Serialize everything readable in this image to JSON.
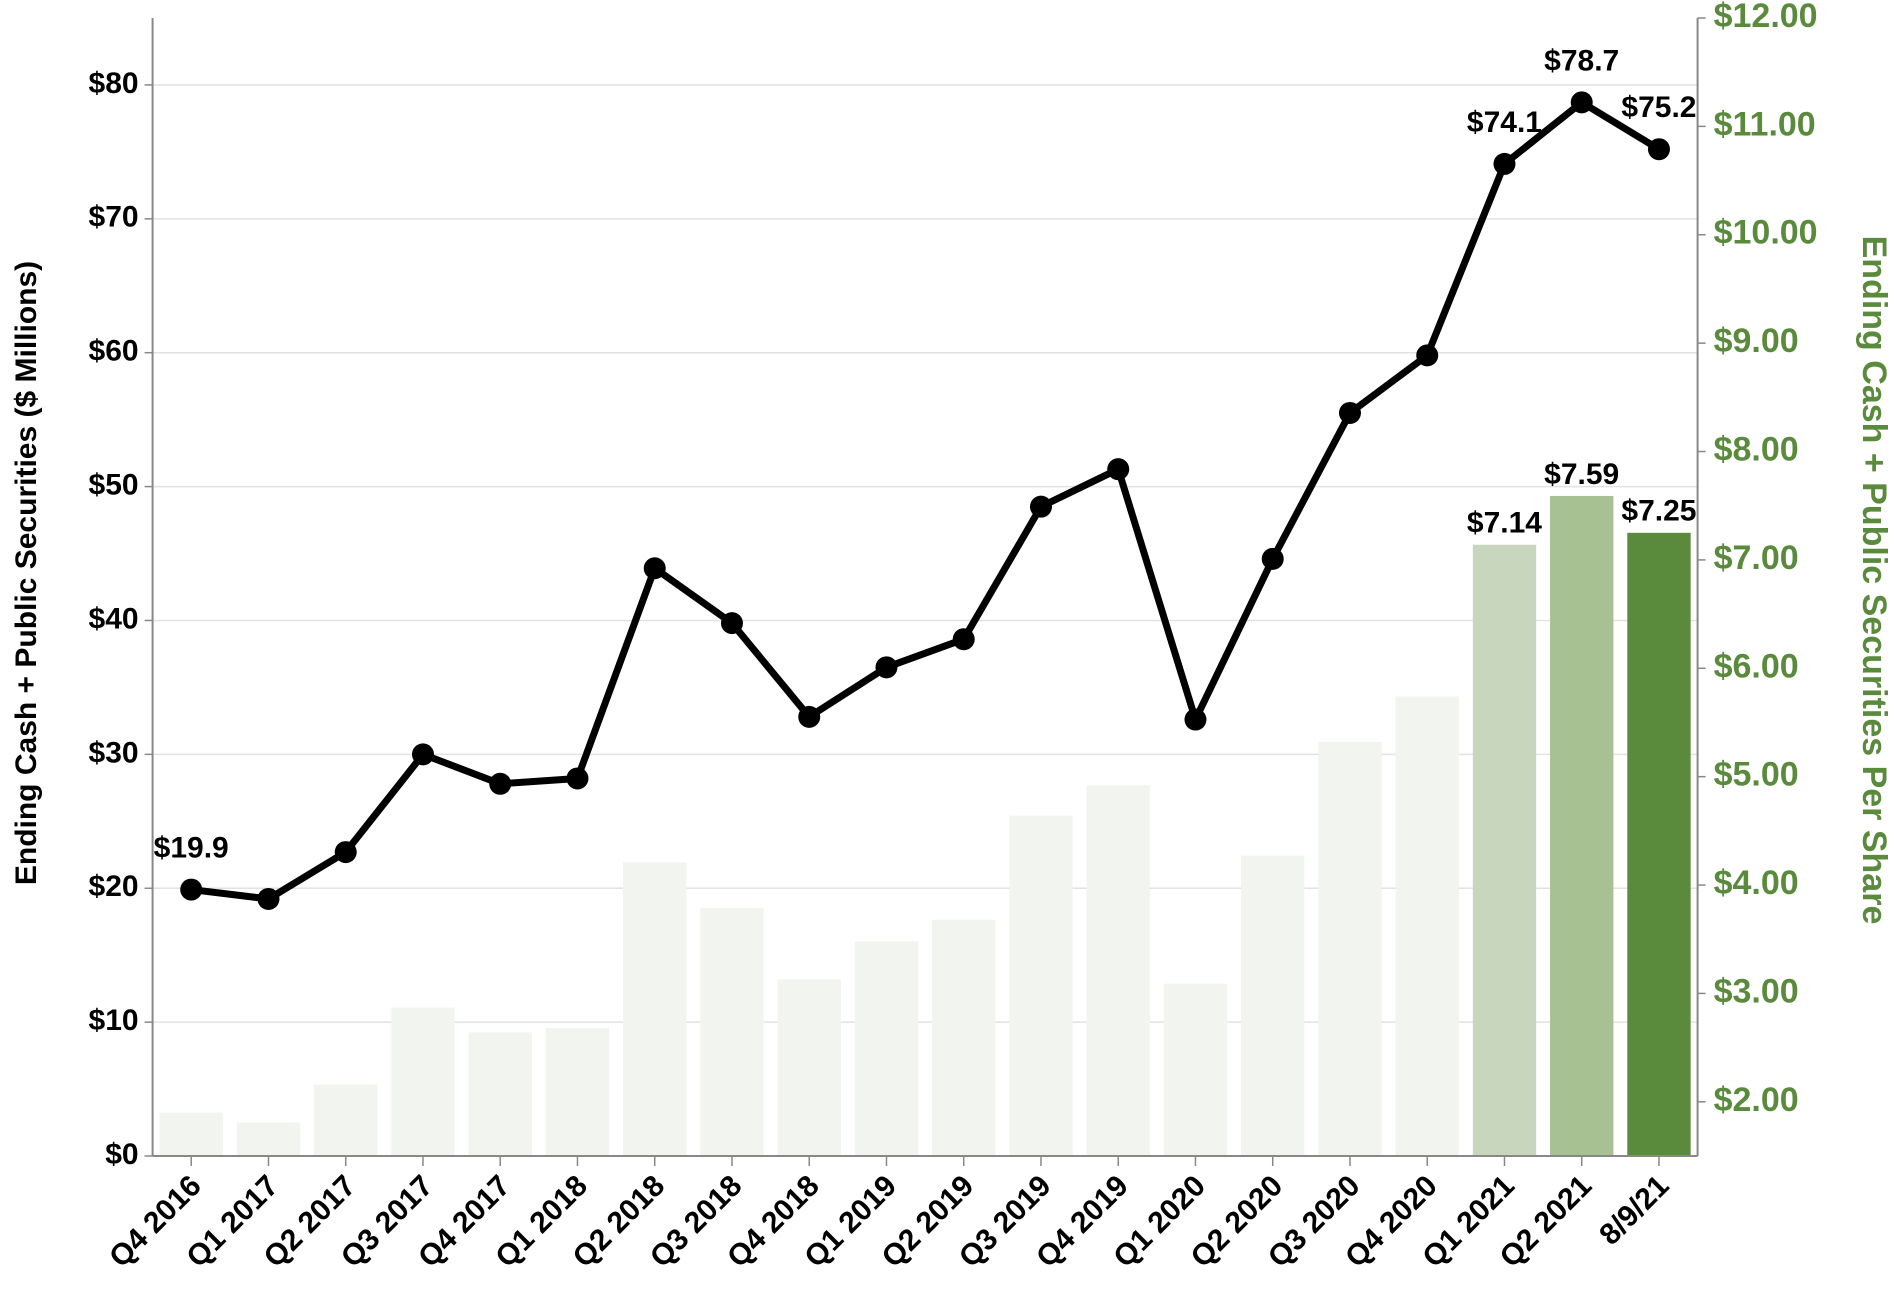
{
  "chart_data": {
    "type": "bar_line",
    "y_label": "Ending Cash + Public Securities ($ Millions)",
    "y2_label": "Ending Cash + Public Securities Per Share",
    "categories": [
      "Q4 2016",
      "Q1 2017",
      "Q2 2017",
      "Q3 2017",
      "Q4 2017",
      "Q1 2018",
      "Q2 2018",
      "Q3 2018",
      "Q4 2018",
      "Q1 2019",
      "Q2 2019",
      "Q3 2019",
      "Q4 2019",
      "Q1 2020",
      "Q2 2020",
      "Q3 2020",
      "Q4 2020",
      "Q1 2021",
      "Q2 2021",
      "8/9/21"
    ],
    "series": [
      {
        "type": "bar",
        "axis": "y2",
        "colors": [
          "#f2f4ef",
          "#f2f4ef",
          "#f2f4ef",
          "#f2f4ef",
          "#f2f4ef",
          "#f2f4ef",
          "#f2f4ef",
          "#f2f4ef",
          "#f2f4ef",
          "#f2f4ef",
          "#f2f4ef",
          "#f2f4ef",
          "#f2f4ef",
          "#f2f4ef",
          "#f2f4ef",
          "#f2f4ef",
          "#f2f4ef",
          "#c9d6be",
          "#a8c193",
          "#5a8a3c"
        ],
        "values": [
          1.9,
          1.81,
          2.16,
          2.87,
          2.64,
          2.68,
          4.21,
          3.79,
          3.13,
          3.48,
          3.68,
          4.64,
          4.92,
          3.09,
          4.27,
          5.32,
          5.74,
          7.14,
          7.59,
          7.25
        ],
        "value_labels": [
          null,
          null,
          null,
          null,
          null,
          null,
          null,
          null,
          null,
          null,
          null,
          null,
          null,
          null,
          null,
          null,
          null,
          "$7.14",
          "$7.59",
          "$7.25"
        ]
      },
      {
        "type": "line",
        "axis": "y",
        "color": "#000000",
        "values": [
          19.9,
          19.2,
          22.7,
          30.0,
          27.8,
          28.2,
          43.9,
          39.8,
          32.8,
          36.5,
          38.6,
          48.5,
          51.3,
          32.6,
          44.6,
          55.5,
          59.8,
          74.1,
          78.7,
          75.2
        ],
        "value_labels": [
          "$19.9",
          null,
          null,
          null,
          null,
          null,
          null,
          null,
          null,
          null,
          null,
          null,
          null,
          null,
          null,
          null,
          null,
          "$74.1",
          "$78.7",
          "$75.2"
        ]
      }
    ],
    "ylim": [
      0,
      85
    ],
    "yticks": [
      {
        "value": 0,
        "label": "$0"
      },
      {
        "value": 10,
        "label": "$10"
      },
      {
        "value": 20,
        "label": "$20"
      },
      {
        "value": 30,
        "label": "$30"
      },
      {
        "value": 40,
        "label": "$40"
      },
      {
        "value": 50,
        "label": "$50"
      },
      {
        "value": 60,
        "label": "$60"
      },
      {
        "value": 70,
        "label": "$70"
      },
      {
        "value": 80,
        "label": "$80"
      }
    ],
    "y2lim": [
      1.5,
      12
    ],
    "y2ticks": [
      {
        "value": 2,
        "label": "$2.00"
      },
      {
        "value": 3,
        "label": "$3.00"
      },
      {
        "value": 4,
        "label": "$4.00"
      },
      {
        "value": 5,
        "label": "$5.00"
      },
      {
        "value": 6,
        "label": "$6.00"
      },
      {
        "value": 7,
        "label": "$7.00"
      },
      {
        "value": 8,
        "label": "$8.00"
      },
      {
        "value": 9,
        "label": "$9.00"
      },
      {
        "value": 10,
        "label": "$10.00"
      },
      {
        "value": 11,
        "label": "$11.00"
      },
      {
        "value": 12,
        "label": "$12.00"
      }
    ],
    "y2_color": "#5a8a3c",
    "grid": true
  }
}
